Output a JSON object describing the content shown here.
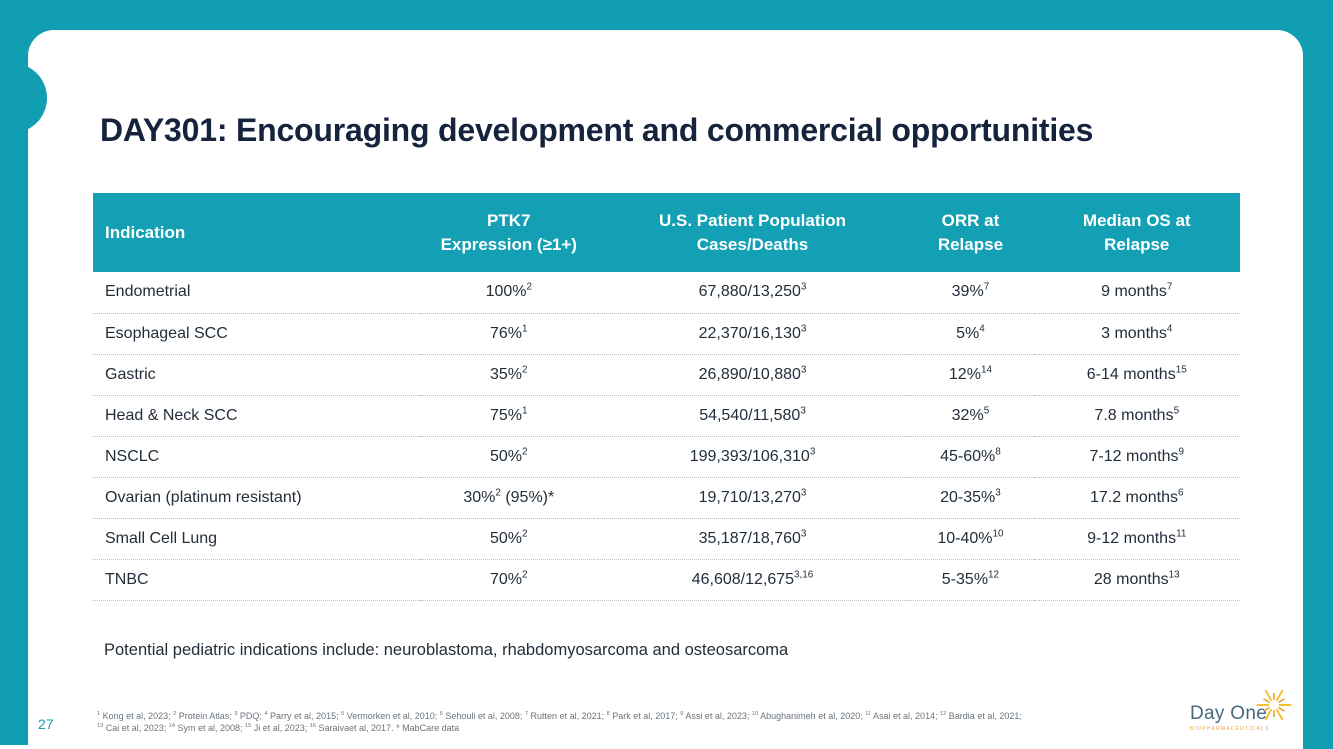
{
  "page": {
    "number": "27"
  },
  "slide": {
    "title": "DAY301: Encouraging development and commercial opportunities",
    "note": "Potential pediatric indications include: neuroblastoma, rhabdomyosarcoma and osteosarcoma"
  },
  "table": {
    "columns": [
      "Indication",
      "PTK7\nExpression (≥1+)",
      "U.S. Patient Population\nCases/Deaths",
      "ORR at\nRelapse",
      "Median OS at\nRelapse"
    ],
    "rows": [
      [
        "Endometrial",
        "100%^2",
        "67,880/13,250^3",
        "39%^7",
        "9 months^7"
      ],
      [
        "Esophageal SCC",
        "76%^1",
        "22,370/16,130^3",
        "5%^4",
        "3 months^4"
      ],
      [
        "Gastric",
        "35%^2",
        "26,890/10,880^3",
        "12%^14",
        "6-14 months^15"
      ],
      [
        "Head & Neck SCC",
        "75%^1",
        "54,540/11,580^3",
        "32%^5",
        "7.8 months^5"
      ],
      [
        "NSCLC",
        "50%^2",
        "199,393/106,310^3",
        "45-60%^8",
        "7-12 months^9"
      ],
      [
        "Ovarian (platinum resistant)",
        "30%^2 (95%)*",
        "19,710/13,270^3",
        "20-35%^3",
        "17.2 months^6"
      ],
      [
        "Small Cell Lung",
        "50%^2",
        "35,187/18,760^3",
        "10-40%^10",
        "9-12 months^11"
      ],
      [
        "TNBC",
        "70%^2",
        "46,608/12,675^3,16",
        "5-35%^12",
        "28 months^13"
      ]
    ]
  },
  "footer": {
    "line1": "^1 Kong et al, 2023; ^2 Protein Atlas; ^3 PDQ; ^4 Parry et al, 2015; ^5 Vermorken et al, 2010; ^6 Sehouli et al, 2008; ^7 Rutten et al, 2021; ^8 Park et al, 2017; ^9 Assi et al, 2023; ^10 Abughanimeh et al, 2020; ^11 Asai et al, 2014; ^12 Bardia et al, 2021;",
    "line2": "^13 Cai et al, 2023; ^14 Sym et al, 2008; ^15 Ji et al, 2023; ^16 Saraivaet al, 2017. * MabCare data"
  },
  "logo": {
    "name": "Day One",
    "subtext": "BIOPHARMACEUTICALS",
    "icon": "sun-burst-icon"
  },
  "colors": {
    "teal": "#119DB2",
    "header_teal": "#13A0B4",
    "title_navy": "#16233C",
    "body_text": "#222E3A",
    "footnote_gray": "#6A747C",
    "page_teal": "#1B9CB3",
    "logo_blue": "#46697F",
    "logo_orange": "#E9A43C",
    "logo_yellow": "#F6BE2C"
  }
}
